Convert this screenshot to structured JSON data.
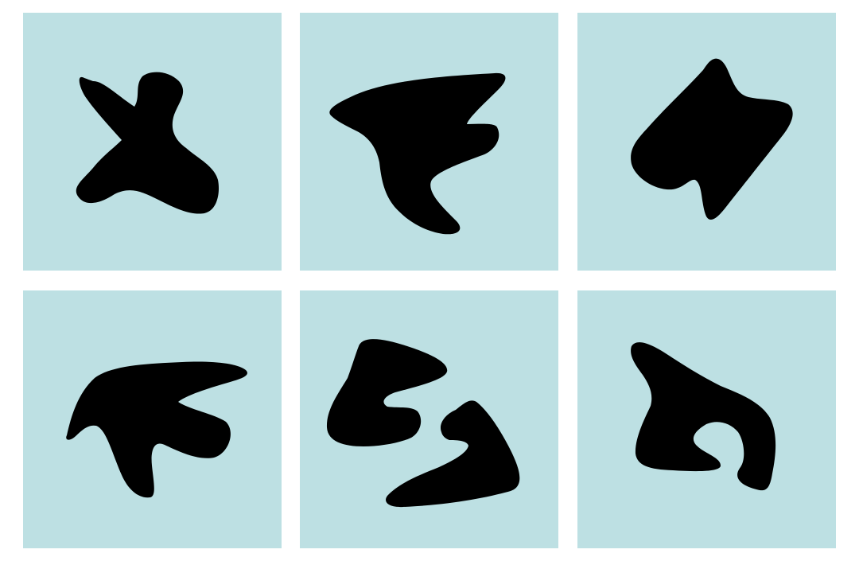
{
  "colors": {
    "page_background": "#ffffff",
    "panel_background": "#bde0e3",
    "shape_fill": "#000000"
  },
  "panels": [
    {
      "shape": "blob-shape-1"
    },
    {
      "shape": "blob-shape-2"
    },
    {
      "shape": "blob-shape-3"
    },
    {
      "shape": "blob-shape-4"
    },
    {
      "shape": "blob-shape-5"
    },
    {
      "shape": "blob-shape-6"
    }
  ]
}
